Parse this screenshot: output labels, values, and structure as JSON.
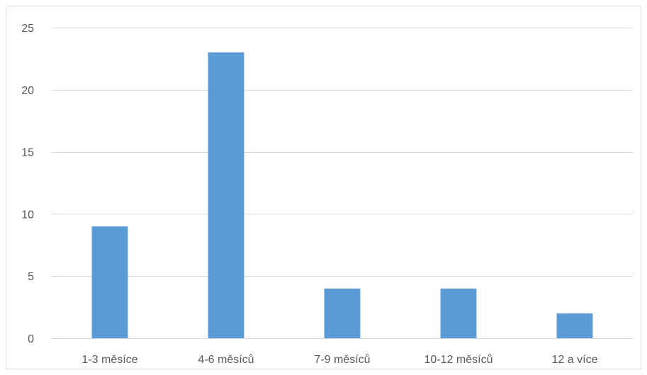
{
  "chart_data": {
    "type": "bar",
    "title": "",
    "xlabel": "",
    "ylabel": "",
    "categories": [
      "1-3 měsíce",
      "4-6 měsíců",
      "7-9 měsíců",
      "10-12 měsíců",
      "12 a více"
    ],
    "values": [
      9,
      23,
      4,
      4,
      2
    ],
    "ylim": [
      0,
      25
    ],
    "yticks": [
      0,
      5,
      10,
      15,
      20,
      25
    ],
    "grid": true,
    "legend": "none",
    "bar_color": "#5b9bd5",
    "gridline_color": "#d9d9d9",
    "text_color": "#595959"
  }
}
